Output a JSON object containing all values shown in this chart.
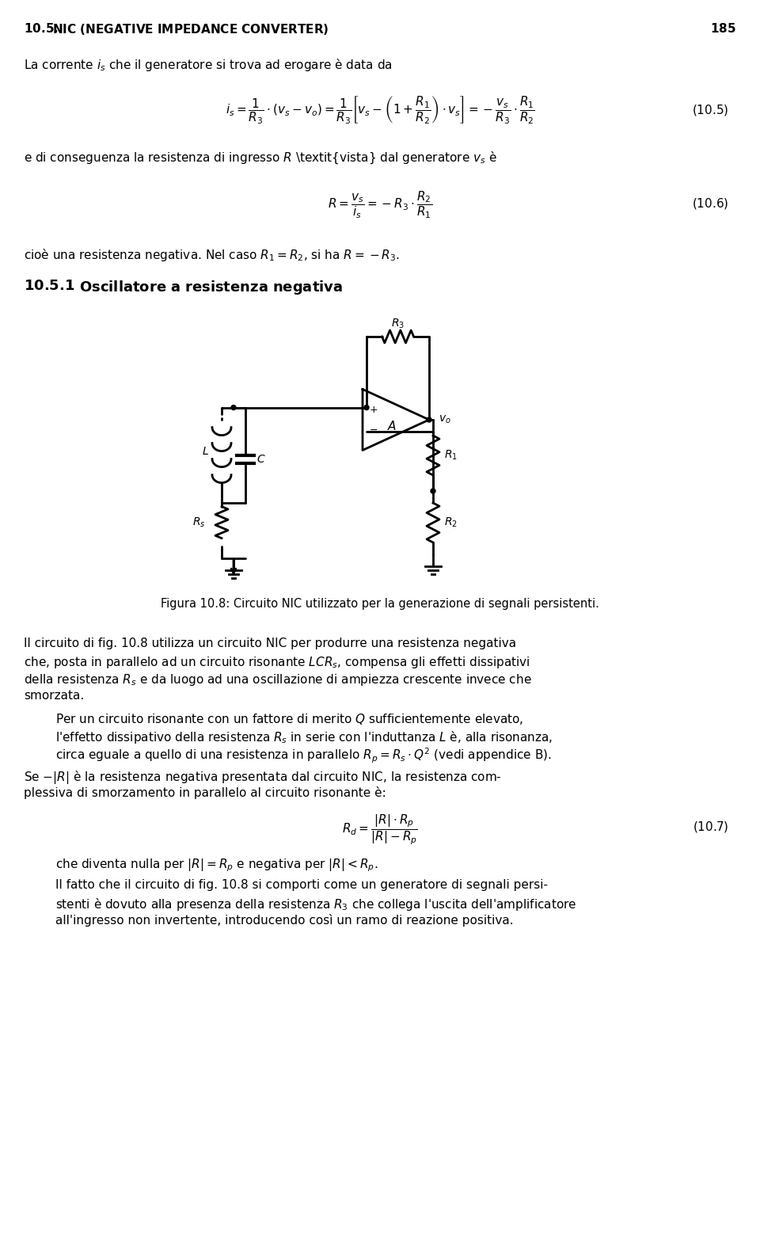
{
  "page_number": "185",
  "header": "10.5.\\quad NIC (NEGATIVE IMPEDANCE CONVERTER)",
  "bg_color": "#ffffff",
  "text_color": "#000000",
  "fig_caption": "Figura 10.8: Circuito NIC utilizzato per la generazione di segnali persistenti.",
  "section_title": "10.5.1\\quad Oscillatore a resistenza negativa",
  "paragraph1": "La corrente $i_s$ che il generatore si trova ad erogare \\`e data da",
  "eq105": "$i_s = \\\\dfrac{1}{R_3} \\\\cdot (v_s - v_o) = \\\\dfrac{1}{R_3} \\\\left[ v_s - \\\\left(1 + \\\\dfrac{R_1}{R_2}\\\\right) \\\\cdot v_s \\\\right] = -\\\\dfrac{v_s}{R_3} \\\\cdot \\\\dfrac{R_1}{R_2}$",
  "eq105_num": "(10.5)",
  "paragraph2": "e di conseguenza la resistenza di ingresso $R$ $vista$ dal generatore $v_s$ \\`e",
  "eq106": "$R = \\\\dfrac{v_s}{i_s} = -R_3 \\\\cdot \\\\dfrac{R_2}{R_1}$",
  "eq106_num": "(10.6)",
  "paragraph3": "cio\\`e una resistenza negativa. Nel caso $R_1 = R_2$, si ha $R = -R_3$.",
  "body1": "Il circuito di fig. 10.8 utilizza un circuito NIC per produrre una resistenza negativa che, posta in parallelo ad un circuito risonante $LCR_s$, compensa gli effetti dissipativi della resistenza $R_s$ e da luogo ad una oscillazione di ampiezza crescente invece che smorzata.",
  "body2": "Per un circuito risonante con un fattore di merito $Q$ sufficientemente elevato, l'effetto dissipativo della resistenza $R_s$ in serie con l'induttanza $L$ \\`e, alla risonanza, circa eguale a quello di una resistenza in parallelo $R_p = R_s \\\\cdot Q^2$ (vedi appendice B).",
  "body3": "Se $-|R|$ \\`e la resistenza negativa presentata dal circuito NIC, la resistenza complessiva di smorzamento in parallelo al circuito risonante \\`e:",
  "eq107": "$R_d = \\\\dfrac{|R| \\\\cdot R_p}{|R| - R_p}$",
  "eq107_num": "(10.7)",
  "body4": "che diventa nulla per $|R| = R_p$ e negativa per $|R| < R_p$.",
  "body5": "Il fatto che il circuito di fig. 10.8 si comporti come un generatore di segnali persistenti \\`e dovuto alla presenza della resistenza $R_3$ che collega l'uscita dell'amplificatore all'ingresso non invertente, introducendo cos\\`\\i\\ un ramo di reazione positiva."
}
